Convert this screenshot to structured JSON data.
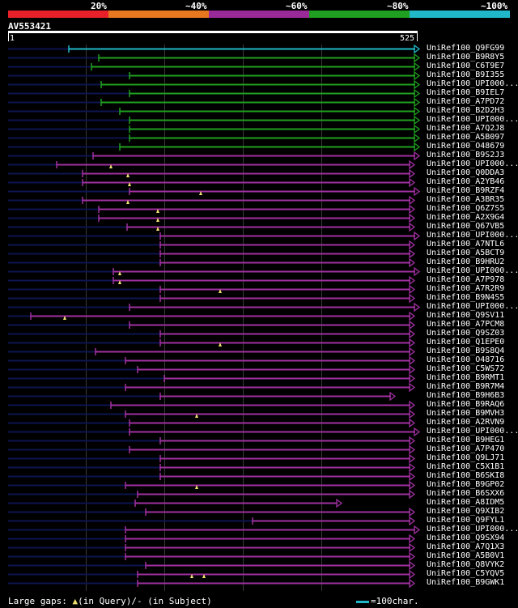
{
  "legend": {
    "labels": [
      "20%",
      "~40%",
      "~60%",
      "~80%",
      "~100%"
    ],
    "colors": [
      "#e8202a",
      "#e87820",
      "#9a2a9a",
      "#20a020",
      "#20b8c8"
    ]
  },
  "query": {
    "id": "AV553421",
    "start": "1",
    "end": "525"
  },
  "colors": {
    "cyan": "#20b8c8",
    "green": "#20a020",
    "magenta": "#a030a0",
    "navy": "#0c1550",
    "triangle": "#f0e070"
  },
  "hits": [
    {
      "label": "UniRef100_Q9FG99",
      "color": "cyan",
      "start": 85,
      "end": 518
    },
    {
      "label": "UniRef100_B9R8Y5",
      "color": "green",
      "start": 122,
      "end": 518
    },
    {
      "label": "UniRef100_C6T9E7",
      "color": "green",
      "start": 113,
      "end": 518
    },
    {
      "label": "UniRef100_B9I355",
      "color": "green",
      "start": 160,
      "end": 518
    },
    {
      "label": "UniRef100_UPI000...",
      "color": "green",
      "start": 125,
      "end": 518
    },
    {
      "label": "UniRef100_B9IEL7",
      "color": "green",
      "start": 160,
      "end": 518
    },
    {
      "label": "UniRef100_A7PD72",
      "color": "green",
      "start": 125,
      "end": 518
    },
    {
      "label": "UniRef100_B2D2H3",
      "color": "green",
      "start": 148,
      "end": 518
    },
    {
      "label": "UniRef100_UPI000...",
      "color": "green",
      "start": 160,
      "end": 518
    },
    {
      "label": "UniRef100_A7Q2J8",
      "color": "green",
      "start": 160,
      "end": 518
    },
    {
      "label": "UniRef100_A5B097",
      "color": "green",
      "start": 160,
      "end": 518
    },
    {
      "label": "UniRef100_O48679",
      "color": "green",
      "start": 148,
      "end": 518
    },
    {
      "label": "UniRef100_B9S2J3",
      "color": "magenta",
      "start": 115,
      "end": 518
    },
    {
      "label": "UniRef100_UPI000...",
      "color": "magenta",
      "start": 70,
      "end": 512,
      "tri": [
        137
      ]
    },
    {
      "label": "UniRef100_Q0DDA3",
      "color": "magenta",
      "start": 102,
      "end": 512,
      "tri": [
        158
      ]
    },
    {
      "label": "UniRef100_A2YB46",
      "color": "magenta",
      "start": 102,
      "end": 512,
      "tri": [
        160
      ]
    },
    {
      "label": "UniRef100_B9RZF4",
      "color": "magenta",
      "start": 160,
      "end": 518,
      "tri": [
        248
      ]
    },
    {
      "label": "UniRef100_A3BR35",
      "color": "magenta",
      "start": 102,
      "end": 512,
      "tri": [
        158
      ]
    },
    {
      "label": "UniRef100_Q6Z7S5",
      "color": "magenta",
      "start": 122,
      "end": 512,
      "tri": [
        195
      ]
    },
    {
      "label": "UniRef100_A2X9G4",
      "color": "magenta",
      "start": 122,
      "end": 512,
      "tri": [
        195
      ]
    },
    {
      "label": "UniRef100_Q67VB5",
      "color": "magenta",
      "start": 157,
      "end": 512,
      "tri": [
        195
      ]
    },
    {
      "label": "UniRef100_UPI000...",
      "color": "magenta",
      "start": 198,
      "end": 518
    },
    {
      "label": "UniRef100_A7NTL6",
      "color": "magenta",
      "start": 198,
      "end": 512
    },
    {
      "label": "UniRef100_A5BCT9",
      "color": "magenta",
      "start": 198,
      "end": 512
    },
    {
      "label": "UniRef100_B9HRU2",
      "color": "magenta",
      "start": 198,
      "end": 512
    },
    {
      "label": "UniRef100_UPI000...",
      "color": "magenta",
      "start": 140,
      "end": 518,
      "tri": [
        148
      ]
    },
    {
      "label": "UniRef100_A7P978",
      "color": "magenta",
      "start": 140,
      "end": 512,
      "tri": [
        148
      ]
    },
    {
      "label": "UniRef100_A7R2R9",
      "color": "magenta",
      "start": 198,
      "end": 512,
      "tri": [
        272
      ]
    },
    {
      "label": "UniRef100_B9N4S5",
      "color": "magenta",
      "start": 198,
      "end": 512
    },
    {
      "label": "UniRef100_UPI000...",
      "color": "magenta",
      "start": 160,
      "end": 518
    },
    {
      "label": "UniRef100_Q9SV11",
      "color": "magenta",
      "start": 38,
      "end": 512,
      "tri": [
        80
      ]
    },
    {
      "label": "UniRef100_A7PCM8",
      "color": "magenta",
      "start": 160,
      "end": 512
    },
    {
      "label": "UniRef100_Q9SZ03",
      "color": "magenta",
      "start": 198,
      "end": 512
    },
    {
      "label": "UniRef100_Q1EPE0",
      "color": "magenta",
      "start": 198,
      "end": 512,
      "tri": [
        272
      ]
    },
    {
      "label": "UniRef100_B9S8Q4",
      "color": "magenta",
      "start": 118,
      "end": 512
    },
    {
      "label": "UniRef100_O48716",
      "color": "magenta",
      "start": 155,
      "end": 512
    },
    {
      "label": "UniRef100_C5WS72",
      "color": "magenta",
      "start": 170,
      "end": 512
    },
    {
      "label": "UniRef100_B9RMT1",
      "color": "magenta",
      "start": 203,
      "end": 512
    },
    {
      "label": "UniRef100_B9R7M4",
      "color": "magenta",
      "start": 155,
      "end": 512
    },
    {
      "label": "UniRef100_B9H6B3",
      "color": "magenta",
      "start": 198,
      "end": 488
    },
    {
      "label": "UniRef100_B9RAQ6",
      "color": "magenta",
      "start": 137,
      "end": 512
    },
    {
      "label": "UniRef100_B9MVH3",
      "color": "magenta",
      "start": 155,
      "end": 512,
      "tri": [
        243
      ]
    },
    {
      "label": "UniRef100_A2RVN9",
      "color": "magenta",
      "start": 160,
      "end": 512
    },
    {
      "label": "UniRef100_UPI000...",
      "color": "magenta",
      "start": 160,
      "end": 518
    },
    {
      "label": "UniRef100_B9HEG1",
      "color": "magenta",
      "start": 198,
      "end": 512
    },
    {
      "label": "UniRef100_A7P470",
      "color": "magenta",
      "start": 160,
      "end": 512
    },
    {
      "label": "UniRef100_Q9LJ71",
      "color": "magenta",
      "start": 198,
      "end": 512
    },
    {
      "label": "UniRef100_C5X1B1",
      "color": "magenta",
      "start": 198,
      "end": 512
    },
    {
      "label": "UniRef100_B6SKI8",
      "color": "magenta",
      "start": 198,
      "end": 512
    },
    {
      "label": "UniRef100_B9GP02",
      "color": "magenta",
      "start": 155,
      "end": 512,
      "tri": [
        243
      ]
    },
    {
      "label": "UniRef100_B6SXX6",
      "color": "magenta",
      "start": 170,
      "end": 512
    },
    {
      "label": "UniRef100_A8IDM5",
      "color": "magenta",
      "start": 167,
      "end": 422
    },
    {
      "label": "UniRef100_Q9XIB2",
      "color": "magenta",
      "start": 180,
      "end": 512
    },
    {
      "label": "UniRef100_Q9FYL1",
      "color": "magenta",
      "start": 312,
      "end": 512
    },
    {
      "label": "UniRef100_UPI000...",
      "color": "magenta",
      "start": 155,
      "end": 518
    },
    {
      "label": "UniRef100_Q9SX94",
      "color": "magenta",
      "start": 155,
      "end": 512
    },
    {
      "label": "UniRef100_A7Q1X3",
      "color": "magenta",
      "start": 155,
      "end": 512
    },
    {
      "label": "UniRef100_A5B0V1",
      "color": "magenta",
      "start": 155,
      "end": 512
    },
    {
      "label": "UniRef100_Q8VYK2",
      "color": "magenta",
      "start": 180,
      "end": 512
    },
    {
      "label": "UniRef100_C5YQV5",
      "color": "magenta",
      "start": 170,
      "end": 512,
      "tri": [
        237,
        252
      ]
    },
    {
      "label": "UniRef100_B9GWK1",
      "color": "magenta",
      "start": 170,
      "end": 512
    }
  ],
  "footer": {
    "gaps_label": "Large gaps:",
    "gaps_in_query": "(in Query)/",
    "gaps_dash": "-",
    "gaps_in_subject": "(in Subject)",
    "scale_label": "=100char."
  }
}
